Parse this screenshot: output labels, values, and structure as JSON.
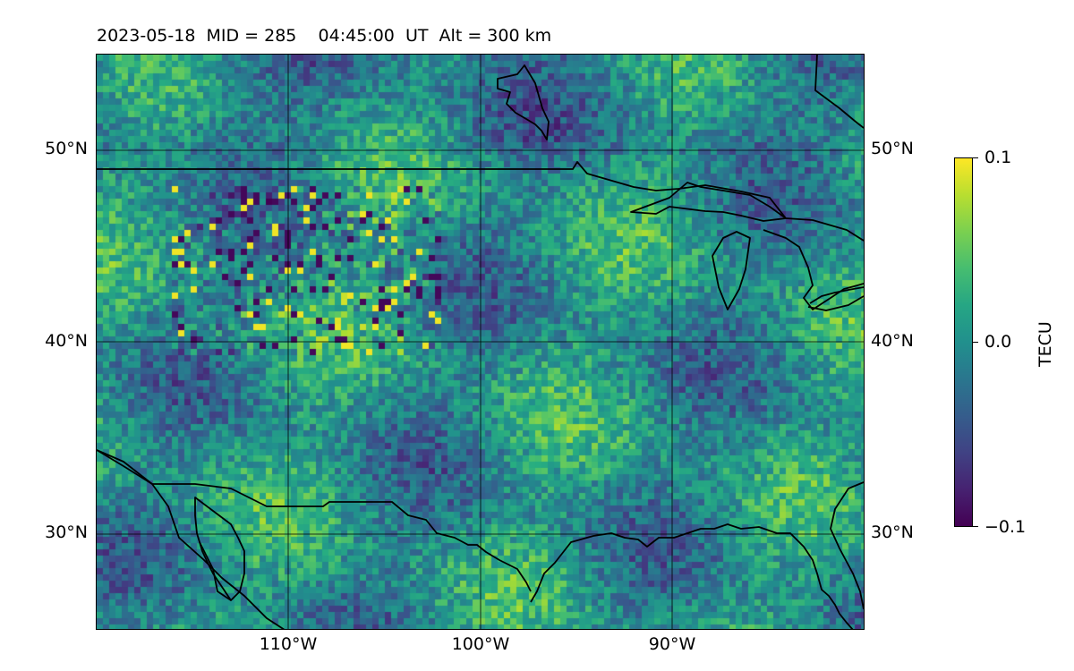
{
  "title": "2023-05-18  MID = 285    04:45:00  UT  Alt = 300 km",
  "map": {
    "lon_range": [
      -120,
      -80
    ],
    "lat_range": [
      25,
      55
    ],
    "gridlines": true,
    "lat_ticks": [
      "50°N",
      "40°N",
      "30°N"
    ],
    "lon_ticks": [
      "110°W",
      "100°W",
      "90°W"
    ]
  },
  "colorbar": {
    "label": "TECU",
    "ticks": [
      "0.1",
      "0.0",
      "−0.1"
    ],
    "range": [
      -0.1,
      0.1
    ],
    "colormap": "viridis"
  },
  "colors": {
    "grid": "#000000",
    "coast": "#000000"
  }
}
